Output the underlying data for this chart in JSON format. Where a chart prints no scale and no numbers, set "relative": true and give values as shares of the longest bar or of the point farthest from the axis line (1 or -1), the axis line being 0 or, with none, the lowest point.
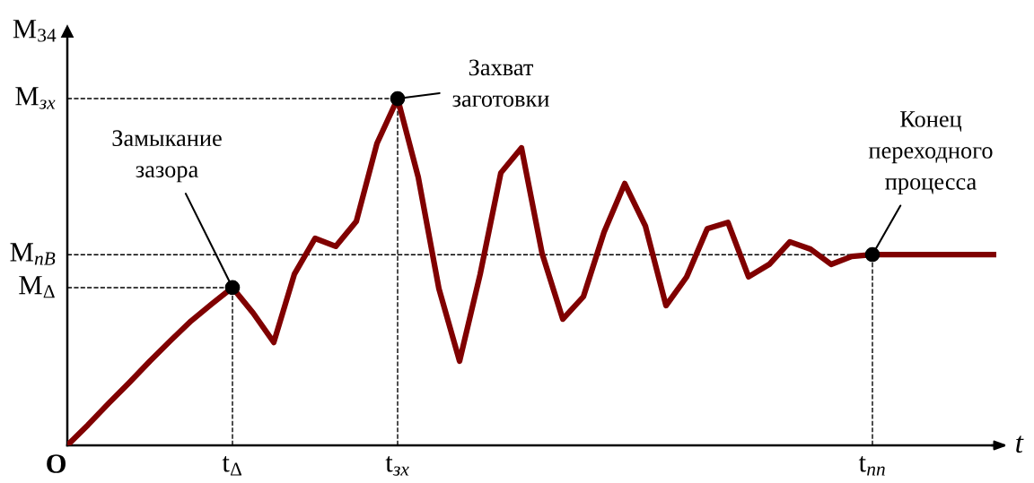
{
  "chart_data": {
    "type": "line",
    "relative": true,
    "xlabel": "t",
    "ylabel": "M$_{34}$",
    "categories": [
      null,
      null,
      null,
      null,
      null,
      null,
      null,
      null,
      "t$_{Δ}$",
      null,
      null,
      null,
      null,
      null,
      null,
      null,
      "t$_{зх}$",
      null,
      null,
      null,
      null,
      null,
      null,
      null,
      null,
      null,
      null,
      null,
      null,
      null,
      null,
      null,
      null,
      null,
      null,
      null,
      null,
      null,
      null,
      "t$_{пп}$",
      null,
      null,
      null,
      null,
      null,
      null
    ],
    "series": [
      {
        "color": "#800000",
        "values": [
          0,
          0.059,
          0.121,
          0.181,
          0.243,
          0.302,
          0.359,
          0.408,
          0.455,
          0.382,
          0.297,
          0.494,
          0.597,
          0.574,
          0.646,
          0.871,
          1.0,
          0.773,
          0.452,
          0.243,
          0.494,
          0.786,
          0.858,
          0.553,
          0.364,
          0.429,
          0.615,
          0.755,
          0.633,
          0.403,
          0.486,
          0.625,
          0.643,
          0.486,
          0.522,
          0.587,
          0.566,
          0.522,
          0.545,
          0.55,
          0.55,
          0.55,
          0.55,
          0.55,
          0.55,
          0.55
        ]
      }
    ],
    "marker": "none",
    "line_style": "solid",
    "ref_lines": [
      {
        "axis": "y",
        "value": 1.0,
        "label": "M$_{зх}$",
        "line_style": "dashed"
      },
      {
        "axis": "y",
        "value": 0.55,
        "label": "M$_{пВ}$",
        "line_style": "dashed"
      },
      {
        "axis": "y",
        "value": 0.455,
        "label": "M$_{Δ}$",
        "line_style": "dashed"
      },
      {
        "axis": "x",
        "value": "t$_{Δ}$",
        "line_style": "dashed"
      },
      {
        "axis": "x",
        "value": "t$_{зх}$",
        "line_style": "dashed"
      },
      {
        "axis": "x",
        "value": "t$_{пп}$",
        "line_style": "dashed"
      }
    ],
    "annotations": [
      {
        "text": "Замыкание\nзазора",
        "x": "t$_{Δ}$",
        "y": 0.455
      },
      {
        "text": "Захват\nзаготовки",
        "x": "t$_{зх}$",
        "y": 1.0
      },
      {
        "text": "Конец\nпереходного\nпроцесса",
        "x": "t$_{пп}$",
        "y": 0.55
      },
      "O"
    ]
  }
}
